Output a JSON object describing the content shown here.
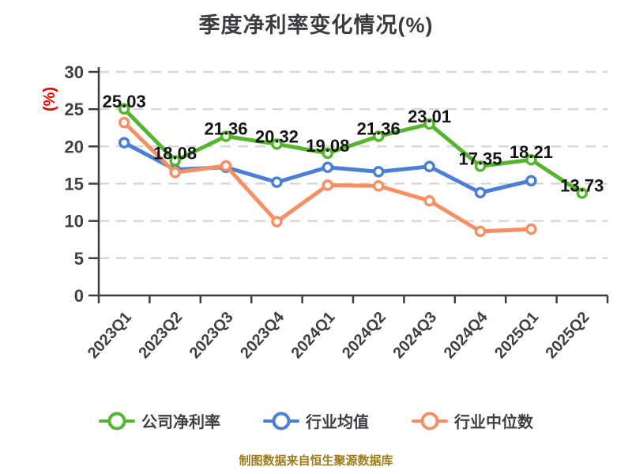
{
  "title": "季度净利率变化情况(%)",
  "y_axis_unit": "(%)",
  "caption": "制图数据来自恒生聚源数据库",
  "colors": {
    "company": "#56b42f",
    "industry_avg": "#4b7fd3",
    "industry_median": "#f69064",
    "grid": "#d7d7d7",
    "axis": "#3e3e42",
    "tick_text": "#3f3f44",
    "data_label": "#141414",
    "unit_label": "#e60000",
    "title_text": "#3b3b40",
    "caption_text": "#9d7c1a"
  },
  "chart_data": {
    "type": "line",
    "title": "季度净利率变化情况(%)",
    "ylabel": "(%)",
    "ylim": [
      0,
      30
    ],
    "yticks": [
      0,
      5,
      10,
      15,
      20,
      25,
      30
    ],
    "grid": "horizontal-dashed",
    "legend_position": "bottom",
    "marker": "circle-white-fill",
    "categories": [
      "2023Q1",
      "2023Q2",
      "2023Q3",
      "2023Q4",
      "2024Q1",
      "2024Q2",
      "2024Q3",
      "2024Q4",
      "2025Q1",
      "2025Q2"
    ],
    "series": [
      {
        "key": "company",
        "name": "公司净利率",
        "color": "#56b42f",
        "values": [
          25.03,
          18.08,
          21.36,
          20.32,
          19.08,
          21.36,
          23.01,
          17.35,
          18.21,
          13.73
        ],
        "labels": [
          "25.03",
          "18.08",
          "21.36",
          "20.32",
          "19.08",
          "21.36",
          "23.01",
          "17.35",
          "18.21",
          "13.73"
        ],
        "show_labels": true
      },
      {
        "key": "industry-avg",
        "name": "行业均值",
        "color": "#4b7fd3",
        "values": [
          20.5,
          16.9,
          17.2,
          15.2,
          17.2,
          16.6,
          17.3,
          13.8,
          15.4,
          null
        ],
        "labels": [],
        "show_labels": false
      },
      {
        "key": "industry-median",
        "name": "行业中位数",
        "color": "#f69064",
        "values": [
          23.2,
          16.5,
          17.4,
          9.9,
          14.8,
          14.7,
          12.7,
          8.6,
          8.9,
          null
        ],
        "labels": [],
        "show_labels": false
      }
    ]
  }
}
